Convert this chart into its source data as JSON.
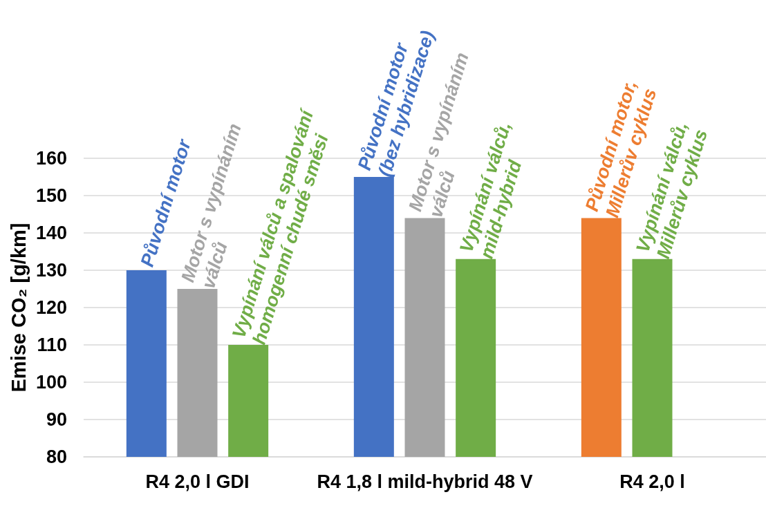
{
  "chart_data": {
    "type": "bar",
    "ylabel": "Emise CO₂ [g/km]",
    "categories": [
      "R4 2,0 l GDI",
      "R4 1,8 l mild-hybrid 48 V",
      "R4 2,0 l"
    ],
    "series": [
      {
        "colors": [
          "#4472c4",
          "#4472c4",
          "#ed7d31"
        ],
        "values": [
          130,
          155,
          144
        ],
        "value_labels": [
          "Původní motor",
          "Původní motor\n(bez hybridizace)",
          "Původní motor,\nMillerův cyklus"
        ]
      },
      {
        "colors": [
          "#a5a5a5",
          "#a5a5a5",
          "#70ad47"
        ],
        "values": [
          125,
          144,
          133
        ],
        "value_labels": [
          "Motor s vypínáním\nválců",
          "Motor s vypínáním\nválců",
          "Vypínání válců,\nMillerův cyklus"
        ]
      },
      {
        "color": "#70ad47",
        "values": [
          110,
          133,
          null
        ],
        "value_labels": [
          "Vypínání válců a spalování\nhomogenní chudé směsi",
          "Vypínání válců,\nmild-hybrid",
          null
        ]
      }
    ],
    "ylim": [
      80,
      160
    ],
    "yticks": [
      80,
      90,
      100,
      110,
      120,
      130,
      140,
      150,
      160
    ],
    "grid": "y"
  }
}
